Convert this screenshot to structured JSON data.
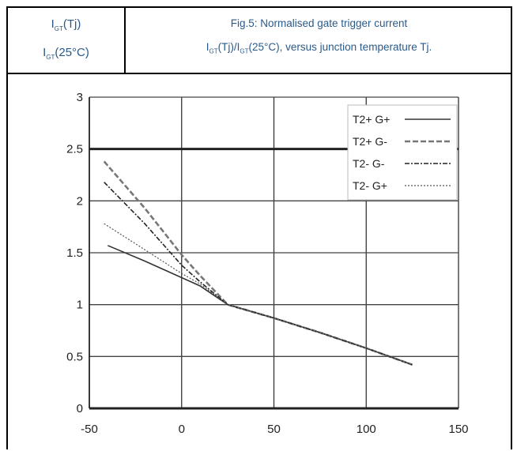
{
  "header": {
    "ylabel_line1_pre": "I",
    "ylabel_line1_sub": "GT",
    "ylabel_line1_post": "(Tj)",
    "ylabel_line2_pre": "I",
    "ylabel_line2_sub": "GT",
    "ylabel_line2_post": "(25°C)",
    "title_line1": "Fig.5: Normalised gate trigger current",
    "title_line2_a": "I",
    "title_line2_sub1": "GT",
    "title_line2_b": "(Tj)/I",
    "title_line2_sub2": "GT",
    "title_line2_c": "(25°C), versus junction temperature Tj."
  },
  "chart_data": {
    "type": "line",
    "xlim": [
      -50,
      150
    ],
    "ylim": [
      0,
      3
    ],
    "x_ticks": [
      "-50",
      "0",
      "50",
      "100",
      "150"
    ],
    "y_ticks": [
      "0",
      "0.5",
      "1",
      "1.5",
      "2",
      "2.5",
      "3"
    ],
    "grid": true,
    "legend_position": "top-right",
    "series": [
      {
        "name": "T2+ G+",
        "style": "solid",
        "points": [
          [
            -40,
            1.57
          ],
          [
            -20,
            1.42
          ],
          [
            0,
            1.26
          ],
          [
            10,
            1.18
          ],
          [
            25,
            1.0
          ],
          [
            50,
            0.87
          ],
          [
            75,
            0.73
          ],
          [
            100,
            0.58
          ],
          [
            125,
            0.42
          ]
        ]
      },
      {
        "name": "T2+ G-",
        "style": "thick-dash",
        "points": [
          [
            -42,
            2.38
          ],
          [
            -20,
            1.93
          ],
          [
            0,
            1.48
          ],
          [
            10,
            1.28
          ],
          [
            25,
            1.0
          ],
          [
            50,
            0.87
          ],
          [
            75,
            0.73
          ],
          [
            100,
            0.58
          ],
          [
            125,
            0.42
          ]
        ]
      },
      {
        "name": "T2- G-",
        "style": "dash-dot",
        "points": [
          [
            -42,
            2.18
          ],
          [
            -20,
            1.78
          ],
          [
            0,
            1.38
          ],
          [
            10,
            1.22
          ],
          [
            25,
            1.0
          ],
          [
            50,
            0.87
          ],
          [
            75,
            0.73
          ],
          [
            100,
            0.58
          ],
          [
            125,
            0.42
          ]
        ]
      },
      {
        "name": "T2- G+",
        "style": "thin-dot",
        "points": [
          [
            -42,
            1.78
          ],
          [
            -20,
            1.53
          ],
          [
            0,
            1.3
          ],
          [
            10,
            1.2
          ],
          [
            25,
            1.0
          ],
          [
            50,
            0.87
          ],
          [
            75,
            0.73
          ],
          [
            100,
            0.58
          ],
          [
            125,
            0.42
          ]
        ]
      }
    ]
  }
}
